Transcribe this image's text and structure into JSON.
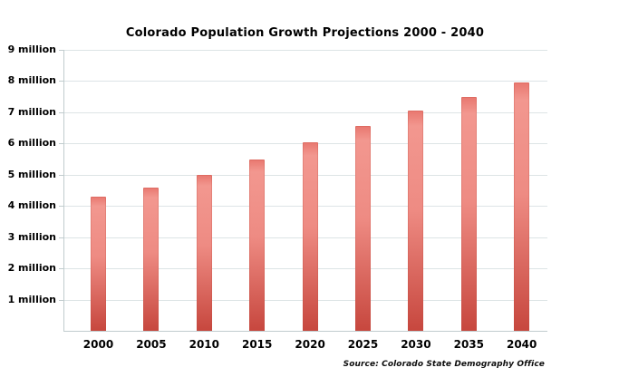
{
  "chart_data": {
    "type": "bar",
    "title": "Colorado Population Growth Projections 2000 - 2040",
    "source_note": "Source: Colorado State Demography Office",
    "categories": [
      "2000",
      "2005",
      "2010",
      "2015",
      "2020",
      "2025",
      "2030",
      "2035",
      "2040"
    ],
    "values": [
      4.3,
      4.6,
      5.0,
      5.5,
      6.05,
      6.55,
      7.05,
      7.5,
      7.95
    ],
    "unit": "million people",
    "y_tick_labels": [
      "9 million",
      "8 million",
      "7 million",
      "6 million",
      "5 million",
      "4 million",
      "3 million",
      "2 million",
      "1 million"
    ],
    "ylim": [
      0,
      9
    ],
    "xlabel": "",
    "ylabel": "",
    "grid": "horizontal gridlines at each million",
    "legend_position": "none",
    "colors": {
      "bar_cap": "#e8776f",
      "bar_top": "#f2978f",
      "bar_mid": "#ee8b83",
      "bar_bottom": "#c7473e",
      "gridline": "#dde4e6",
      "axis": "#c1ccce",
      "text": "#000000",
      "background": "#ffffff"
    }
  }
}
